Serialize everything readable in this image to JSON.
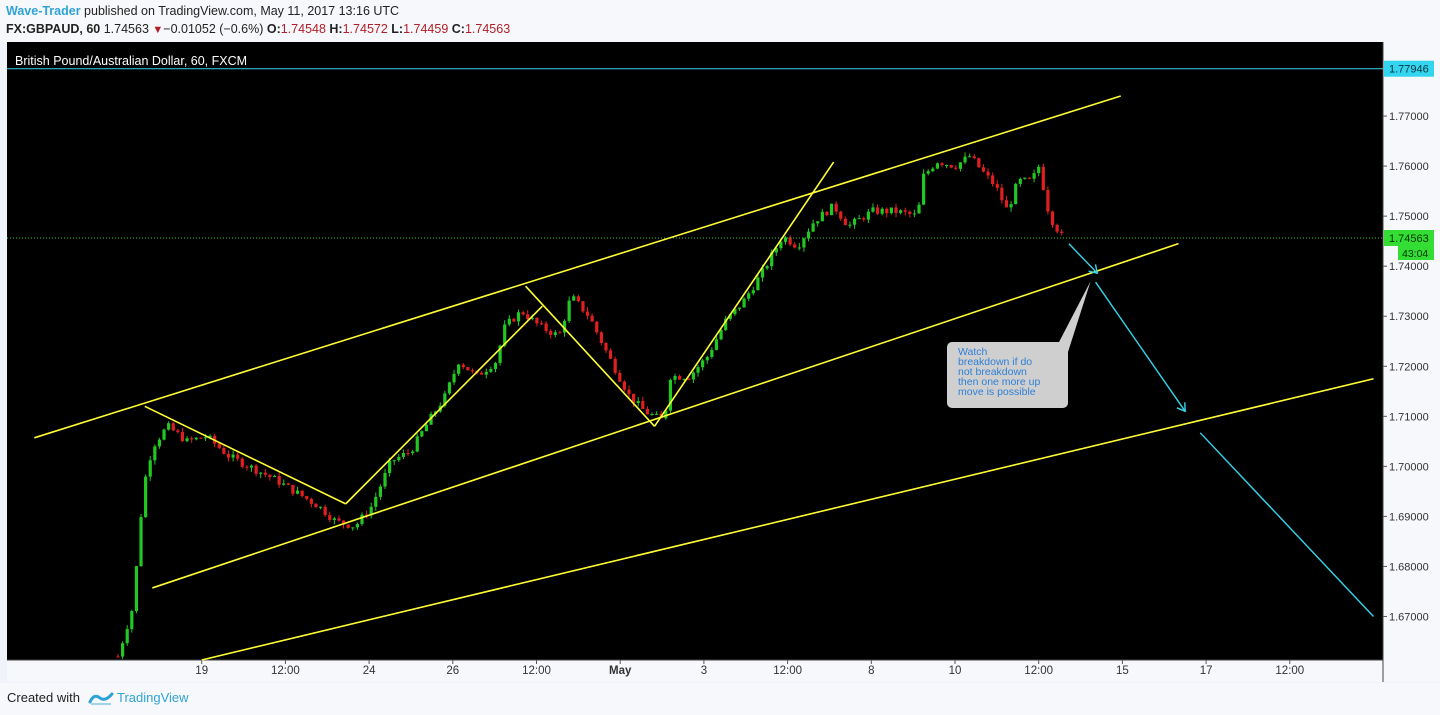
{
  "header": {
    "author": "Wave-Trader",
    "published_text": " published on TradingView.com, May 11, 2017 13:16 UTC",
    "symbol": "FX:GBPAUD, 60",
    "last": "1.74563",
    "change": "−0.01052 (−0.6%)",
    "open_label": "O:",
    "open": "1.74548",
    "high_label": "H:",
    "high": "1.74572",
    "low_label": "L:",
    "low": "1.74459",
    "close_label": "C:",
    "close": "1.74563"
  },
  "footer": {
    "created_with": "Created with",
    "brand": "TradingView"
  },
  "colors": {
    "background": "#000000",
    "bull": "#22c722",
    "bear": "#e02020",
    "trendline": "#ffff33",
    "arrow": "#33d6ee",
    "price_line": "#33cc33",
    "level_line": "#33d6ee"
  },
  "chart_data": {
    "type": "candlestick",
    "title": "British Pound/Australian Dollar, 60, FXCM",
    "x_ticks": [
      {
        "label": "19",
        "pos": 0.1
      },
      {
        "label": "12:00",
        "pos": 0.2
      },
      {
        "label": "24",
        "pos": 0.3
      },
      {
        "label": "26",
        "pos": 0.4
      },
      {
        "label": "12:00",
        "pos": 0.5
      },
      {
        "label": "May",
        "pos": 0.6,
        "bold": true
      },
      {
        "label": "3",
        "pos": 0.7
      },
      {
        "label": "12:00",
        "pos": 0.8
      },
      {
        "label": "8",
        "pos": 0.9
      },
      {
        "label": "10",
        "pos": 1.0
      },
      {
        "label": "12:00",
        "pos": 1.1
      },
      {
        "label": "15",
        "pos": 1.2
      },
      {
        "label": "17",
        "pos": 1.3
      },
      {
        "label": "12:00",
        "pos": 1.4
      }
    ],
    "y_ticks": [
      "1.77000",
      "1.76000",
      "1.75000",
      "1.74000",
      "1.73000",
      "1.72000",
      "1.71000",
      "1.70000",
      "1.69000",
      "1.68000",
      "1.67000"
    ],
    "ylim": [
      1.6613,
      1.7848
    ],
    "last_price": {
      "label": "1.74563",
      "value": 1.74563,
      "countdown": "43:04"
    },
    "level_line": {
      "label": "1.77946",
      "value": 1.77946
    },
    "price_path": [
      [
        0,
        1.662
      ],
      [
        0.0179,
        1.672
      ],
      [
        0.0305,
        1.696
      ],
      [
        0.0413,
        1.704
      ],
      [
        0.0592,
        1.708
      ],
      [
        0.0825,
        1.705
      ],
      [
        0.1058,
        1.706
      ],
      [
        0.1327,
        1.702
      ],
      [
        0.1865,
        1.6975
      ],
      [
        0.2402,
        1.692
      ],
      [
        0.2599,
        1.689
      ],
      [
        0.2832,
        1.688
      ],
      [
        0.3029,
        1.692
      ],
      [
        0.3262,
        1.701
      ],
      [
        0.3496,
        1.703
      ],
      [
        0.3711,
        1.709
      ],
      [
        0.3908,
        1.714
      ],
      [
        0.407,
        1.721
      ],
      [
        0.4285,
        1.718
      ],
      [
        0.4517,
        1.721
      ],
      [
        0.4624,
        1.728
      ],
      [
        0.4822,
        1.731
      ],
      [
        0.5037,
        1.728
      ],
      [
        0.527,
        1.726
      ],
      [
        0.5413,
        1.734
      ],
      [
        0.5628,
        1.73
      ],
      [
        0.5861,
        1.722
      ],
      [
        0.6112,
        1.714
      ],
      [
        0.6291,
        1.711
      ],
      [
        0.6525,
        1.709
      ],
      [
        0.6596,
        1.718
      ],
      [
        0.6829,
        1.718
      ],
      [
        0.7044,
        1.722
      ],
      [
        0.7259,
        1.729
      ],
      [
        0.7474,
        1.733
      ],
      [
        0.7707,
        1.739
      ],
      [
        0.794,
        1.746
      ],
      [
        0.8119,
        1.744
      ],
      [
        0.8316,
        1.749
      ],
      [
        0.855,
        1.752
      ],
      [
        0.8728,
        1.748
      ],
      [
        0.9015,
        1.751
      ],
      [
        0.9284,
        1.751
      ],
      [
        0.9552,
        1.75
      ],
      [
        0.9624,
        1.758
      ],
      [
        0.9785,
        1.761
      ],
      [
        1.0,
        1.76
      ],
      [
        1.0179,
        1.762
      ],
      [
        1.0323,
        1.759
      ],
      [
        1.0484,
        1.756
      ],
      [
        1.0627,
        1.751
      ],
      [
        1.0753,
        1.757
      ],
      [
        1.0914,
        1.757
      ],
      [
        1.1003,
        1.76
      ],
      [
        1.1129,
        1.75
      ],
      [
        1.129,
        1.7456
      ]
    ],
    "trendlines": [
      {
        "from": [
          -0.1,
          1.7057
        ],
        "to": [
          1.198,
          1.774
        ]
      },
      {
        "from": [
          0.041,
          1.6757
        ],
        "to": [
          1.267,
          1.7445
        ]
      },
      {
        "from": [
          0.1,
          1.6613
        ],
        "to": [
          1.5,
          1.7175
        ]
      },
      {
        "from": [
          0.032,
          1.712
        ],
        "to": [
          0.272,
          1.6925
        ]
      },
      {
        "from": [
          0.272,
          1.6925
        ],
        "to": [
          0.507,
          1.732
        ]
      },
      {
        "from": [
          0.487,
          1.736
        ],
        "to": [
          0.641,
          1.708
        ]
      },
      {
        "from": [
          0.641,
          1.708
        ],
        "to": [
          0.855,
          1.7608
        ]
      }
    ],
    "arrows": [
      {
        "from": [
          1.136,
          1.7445
        ],
        "to": [
          1.17,
          1.7386
        ]
      },
      {
        "from": [
          1.168,
          1.7368
        ],
        "to": [
          1.275,
          1.711
        ]
      },
      {
        "from": [
          1.293,
          1.7067
        ],
        "to": [
          1.5,
          1.67
        ]
      }
    ],
    "annotation": {
      "lines": [
        "Watch",
        "breakdown if do",
        "not breakdown",
        "then one more up",
        "move is possible"
      ],
      "anchor": [
        1.162,
        1.737
      ]
    }
  }
}
